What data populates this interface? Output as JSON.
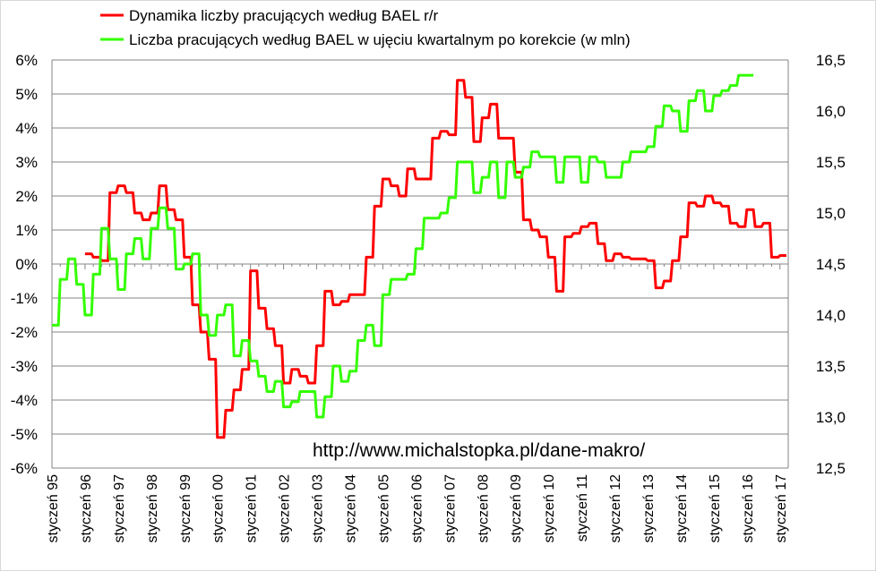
{
  "chart_data": {
    "type": "line",
    "title": "",
    "watermark": "http://www.michalstopka.pl/dane-makro/",
    "x_labels": [
      "styczeń 95",
      "styczeń 96",
      "styczeń 97",
      "styczeń 98",
      "styczeń 99",
      "styczeń 00",
      "styczeń 01",
      "styczeń 02",
      "styczeń 03",
      "styczeń 04",
      "styczeń 05",
      "styczeń 06",
      "styczeń 07",
      "styczeń 08",
      "styczeń 09",
      "styczeń 10",
      "styczeń 11",
      "styczeń 12",
      "styczeń 13",
      "styczeń 14",
      "styczeń 15",
      "styczeń 16",
      "styczeń 17"
    ],
    "y_left": {
      "ticks": [
        "6%",
        "5%",
        "4%",
        "3%",
        "2%",
        "1%",
        "0%",
        "-1%",
        "-2%",
        "-3%",
        "-4%",
        "-5%",
        "-6%"
      ],
      "range": [
        -6,
        6
      ]
    },
    "y_right": {
      "ticks": [
        "16,5",
        "16,0",
        "15,5",
        "15,0",
        "14,5",
        "14,0",
        "13,5",
        "13,0",
        "12,5"
      ],
      "range": [
        12.5,
        16.5
      ]
    },
    "legend_position": "top-center",
    "grid": true,
    "series": [
      {
        "name": "Dynamika liczby pracujących według BAEL r/r",
        "axis": "left",
        "color": "#ff0000",
        "x_start": 1996.0,
        "step": 0.25,
        "values": [
          0.3,
          0.2,
          0.1,
          2.1,
          2.3,
          2.1,
          1.5,
          1.3,
          1.5,
          2.3,
          1.6,
          1.3,
          0.2,
          -1.2,
          -2.0,
          -2.8,
          -5.1,
          -4.3,
          -3.7,
          -3.1,
          -0.2,
          -1.3,
          -1.9,
          -2.4,
          -3.5,
          -3.1,
          -3.3,
          -3.5,
          -2.4,
          -0.8,
          -1.2,
          -1.1,
          -0.9,
          -0.9,
          0.2,
          1.7,
          2.5,
          2.3,
          2.0,
          2.8,
          2.5,
          2.5,
          3.7,
          3.9,
          3.8,
          5.4,
          4.9,
          3.6,
          4.3,
          4.7,
          3.7,
          3.7,
          2.7,
          1.3,
          1.0,
          0.8,
          0.2,
          -0.8,
          0.8,
          0.9,
          1.1,
          1.2,
          0.6,
          0.1,
          0.3,
          0.2,
          0.15,
          0.15,
          0.1,
          -0.7,
          -0.5,
          0.1,
          0.8,
          1.8,
          1.7,
          2.0,
          1.8,
          1.7,
          1.2,
          1.1,
          1.6,
          1.1,
          1.2,
          0.2,
          0.25
        ]
      },
      {
        "name": "Liczba pracujących według BAEL w ujęciu kwartalnym po korekcie (w mln)",
        "axis": "right",
        "color": "#33ff00",
        "x_start": 1995.0,
        "step": 0.25,
        "values": [
          13.9,
          14.35,
          14.55,
          14.3,
          14.0,
          14.4,
          14.85,
          14.55,
          14.25,
          14.6,
          14.75,
          14.55,
          14.85,
          15.05,
          14.85,
          14.45,
          14.5,
          14.6,
          14.0,
          13.8,
          14.0,
          14.1,
          13.6,
          13.75,
          13.55,
          13.4,
          13.25,
          13.35,
          13.1,
          13.15,
          13.25,
          13.25,
          13.0,
          13.2,
          13.5,
          13.35,
          13.45,
          13.75,
          13.9,
          13.7,
          14.2,
          14.35,
          14.35,
          14.4,
          14.65,
          14.95,
          14.95,
          15.0,
          15.15,
          15.5,
          15.5,
          15.2,
          15.35,
          15.5,
          15.15,
          15.5,
          15.35,
          15.45,
          15.6,
          15.55,
          15.55,
          15.3,
          15.55,
          15.55,
          15.3,
          15.55,
          15.5,
          15.35,
          15.35,
          15.5,
          15.6,
          15.6,
          15.65,
          15.85,
          16.05,
          16.0,
          15.8,
          16.1,
          16.2,
          16.0,
          16.15,
          16.2,
          16.25,
          16.35,
          16.35
        ]
      }
    ]
  }
}
